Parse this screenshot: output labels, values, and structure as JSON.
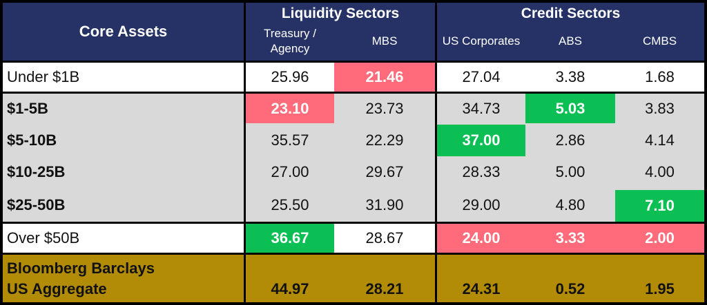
{
  "header": {
    "core_assets": "Core Assets",
    "liquidity_sectors": "Liquidity Sectors",
    "credit_sectors": "Credit Sectors",
    "columns": [
      "Treasury / Agency",
      "MBS",
      "US Corporates",
      "ABS",
      "CMBS"
    ]
  },
  "rows": [
    {
      "label": "Under $1B",
      "values": [
        "25.96",
        "21.46",
        "27.04",
        "3.38",
        "1.68"
      ]
    },
    {
      "label": "$1-5B",
      "values": [
        "23.10",
        "23.73",
        "34.73",
        "5.03",
        "3.83"
      ]
    },
    {
      "label": "$5-10B",
      "values": [
        "35.57",
        "22.29",
        "37.00",
        "2.86",
        "4.14"
      ]
    },
    {
      "label": "$10-25B",
      "values": [
        "27.00",
        "29.67",
        "28.33",
        "5.00",
        "4.00"
      ]
    },
    {
      "label": "$25-50B",
      "values": [
        "25.50",
        "31.90",
        "29.00",
        "4.80",
        "7.10"
      ]
    },
    {
      "label": "Over $50B",
      "values": [
        "36.67",
        "28.67",
        "24.00",
        "3.33",
        "2.00"
      ]
    }
  ],
  "benchmark": {
    "label": "Bloomberg Barclays US Aggregate",
    "values": [
      "44.97",
      "28.21",
      "24.31",
      "0.52",
      "1.95"
    ]
  },
  "colors": {
    "header": "#263266",
    "highlight_low": "#ff6b7a",
    "highlight_high": "#0cbf55",
    "benchmark": "#b28c06",
    "band": "#d9d9d9"
  }
}
